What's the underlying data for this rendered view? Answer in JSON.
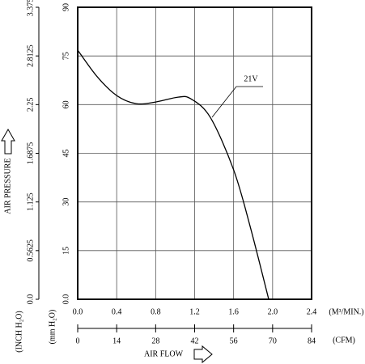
{
  "chart_data": {
    "type": "line",
    "y_label": "AIR PRESSURE",
    "y_unit": "(mm H₂O)",
    "y2_unit": "(INCH H₂O)",
    "x_unit": "(M³/MIN.)",
    "x2_unit": "(CFM)",
    "x_label": "AIR FLOW",
    "x": [
      0,
      0.2,
      0.4,
      0.6,
      0.8,
      1.03,
      1.16,
      1.36,
      1.6,
      1.77,
      1.96
    ],
    "series": [
      {
        "name": "21V",
        "color": "#000000",
        "values": [
          76.8,
          68.6,
          62.8,
          60.3,
          60.8,
          62.3,
          61.8,
          56.1,
          39.9,
          22.4,
          0
        ]
      }
    ],
    "xlim": [
      0,
      2.4
    ],
    "xticks": [
      {
        "value": 0,
        "label": "0.0"
      },
      0.4,
      0.8,
      1.2,
      1.6,
      {
        "value": 2,
        "label": "2.0"
      },
      2.4
    ],
    "x2lim": [
      0,
      84
    ],
    "x2ticks": [
      0,
      14,
      28,
      42,
      56,
      70,
      84
    ],
    "ylim": [
      0,
      90
    ],
    "yticks": [
      {
        "value": 0,
        "label": "0.0"
      },
      15,
      30,
      45,
      60,
      75,
      90
    ],
    "y2lim": [
      0,
      3.375
    ],
    "y2ticks": [
      {
        "value": 0,
        "label": "0.0"
      },
      0.5625,
      1.125,
      1.6875,
      2.25,
      2.8125,
      3.375
    ],
    "grid": true
  }
}
